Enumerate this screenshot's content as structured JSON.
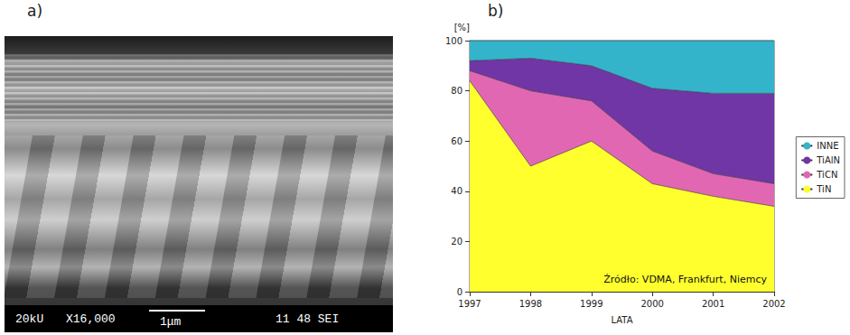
{
  "panel_labels": [
    "a)",
    "b)"
  ],
  "micrograph": {
    "info_bar": [
      "20kU",
      "X16,000",
      "1μm",
      "11 48 SEI"
    ]
  },
  "chart_data": {
    "type": "area",
    "stacked": true,
    "y_label": "[%]",
    "x_label": "LATA",
    "annotation": "Źródło: VDMA, Frankfurt, Niemcy",
    "categories": [
      "1997",
      "1998",
      "1999",
      "2000",
      "2001",
      "2002"
    ],
    "series": [
      {
        "name": "TiN",
        "color": "#ffff2e",
        "values": [
          84,
          50,
          60,
          43,
          38,
          34
        ]
      },
      {
        "name": "TiCN",
        "color": "#e267b3",
        "values": [
          4,
          30,
          16,
          13,
          9,
          9
        ]
      },
      {
        "name": "TiAlN",
        "color": "#7036a6",
        "values": [
          4,
          13,
          14,
          25,
          32,
          36
        ]
      },
      {
        "name": "INNE",
        "color": "#34b4cb",
        "values": [
          8,
          7,
          10,
          19,
          21,
          21
        ]
      }
    ],
    "ylim": [
      0,
      100
    ],
    "yticks": [
      0,
      20,
      40,
      60,
      80,
      100
    ],
    "grid": false,
    "legend": "right"
  }
}
